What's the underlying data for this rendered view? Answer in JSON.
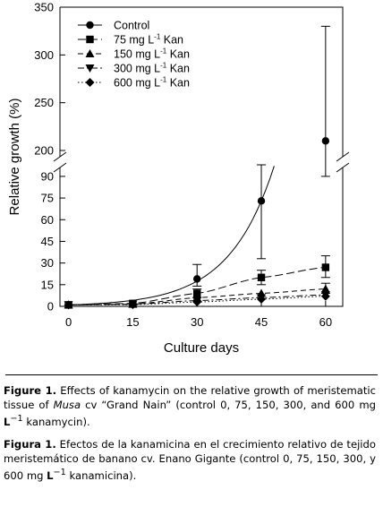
{
  "chart_data": {
    "type": "scatter",
    "xlabel": "Culture days",
    "ylabel": "Relative growth (%)",
    "x_ticks": [
      0,
      15,
      30,
      45,
      60
    ],
    "xlim": [
      -2,
      64
    ],
    "y_axis_broken": true,
    "y_lower_range": [
      0,
      98
    ],
    "y_lower_ticks": [
      0,
      15,
      30,
      45,
      60,
      75,
      90
    ],
    "y_upper_range": [
      200,
      350
    ],
    "y_upper_ticks": [
      200,
      250,
      300,
      350
    ],
    "legend_position": "top-left",
    "series": [
      {
        "name": "Control",
        "marker": "circle",
        "line": "solid",
        "x": [
          0,
          15,
          30,
          45,
          60
        ],
        "y": [
          1,
          2,
          19,
          73,
          210
        ],
        "err_hi": [
          null,
          null,
          29,
          98,
          330
        ],
        "err_lo": [
          null,
          null,
          14,
          33,
          90
        ]
      },
      {
        "name": "75 mg  L-1 Kan",
        "marker": "square",
        "line": "long-dash",
        "x": [
          0,
          15,
          30,
          45,
          60
        ],
        "y": [
          1,
          2,
          9,
          20,
          27
        ],
        "err_hi": [
          null,
          null,
          12,
          25,
          35
        ],
        "err_lo": [
          null,
          null,
          6,
          15,
          20
        ]
      },
      {
        "name": "150 mg L-1 Kan",
        "marker": "triangle-up",
        "line": "dash",
        "x": [
          0,
          15,
          30,
          45,
          60
        ],
        "y": [
          1,
          1.5,
          6,
          9,
          12
        ],
        "err_hi": [
          null,
          null,
          null,
          null,
          16
        ],
        "err_lo": [
          null,
          null,
          null,
          null,
          9
        ]
      },
      {
        "name": "300 mg L-1 Kan",
        "marker": "triangle-down",
        "line": "dash-dot",
        "x": [
          0,
          15,
          30,
          45,
          60
        ],
        "y": [
          1,
          1.5,
          4,
          6,
          8
        ]
      },
      {
        "name": "600 mg L-1 Kan",
        "marker": "diamond",
        "line": "dotted",
        "x": [
          0,
          15,
          30,
          45,
          60
        ],
        "y": [
          1,
          1.2,
          3,
          5,
          7
        ]
      }
    ]
  },
  "legend": [
    {
      "text": "Control",
      "unit": ""
    },
    {
      "text": "75 mg  L",
      "sup": "-1",
      "unit": "Kan"
    },
    {
      "text": "150 mg L",
      "sup": "-1",
      "unit": "Kan"
    },
    {
      "text": "300 mg L",
      "sup": "-1",
      "unit": "Kan"
    },
    {
      "text": "600 mg L",
      "sup": "-1",
      "unit": "Kan"
    }
  ],
  "captions": {
    "en_label": "Figure 1.",
    "en_text_1": " Effects of kanamycin on the relative growth of meris­tematic tissue of ",
    "en_italic": "Musa",
    "en_text_2": " cv “Grand Nain” (control 0, 75, 150, 300, and 600 mg ",
    "en_unit": "L",
    "en_sup": "−1",
    "en_text_3": " kanamycin).",
    "es_label": "Figura 1.",
    "es_text_1": " Efectos de la kanamicina en el crecimiento relativo de tejido meristemático de banano cv. Enano Gigante (control 0, 75, 150, 300, y 600 mg ",
    "es_unit": "L",
    "es_sup": "−1",
    "es_text_2": " kanamicina)."
  }
}
